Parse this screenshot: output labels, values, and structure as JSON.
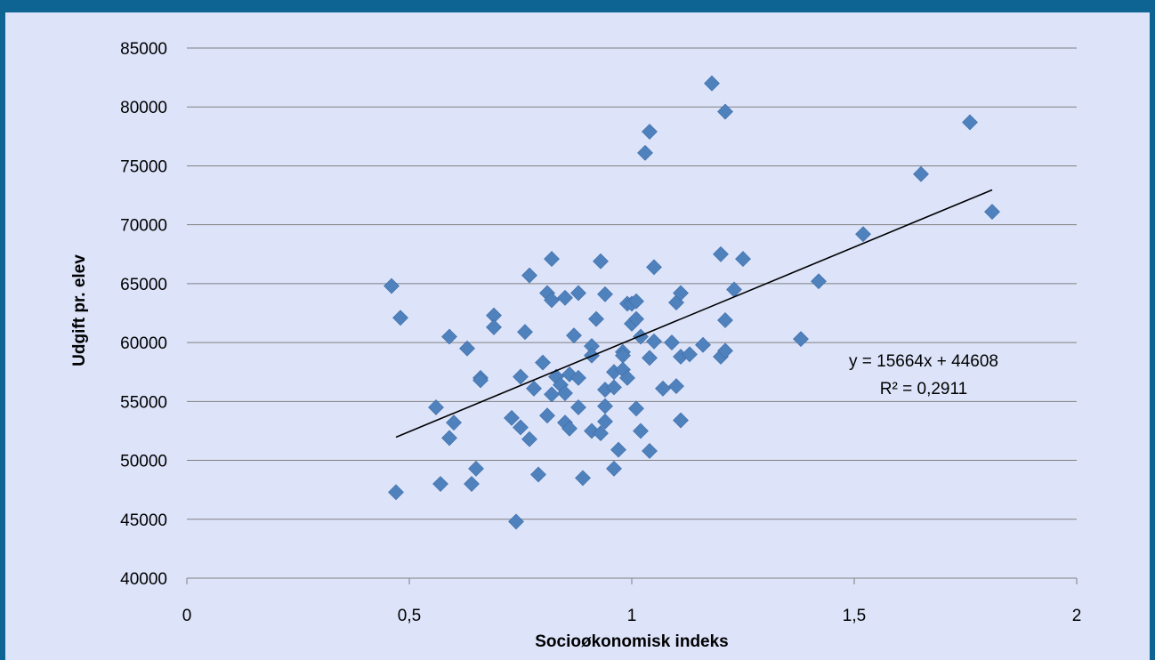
{
  "chart_data": {
    "type": "scatter",
    "title": "",
    "xlabel": "Socioøkonomisk indeks",
    "ylabel": "Udgift pr. elev",
    "xlim": [
      0,
      2
    ],
    "ylim": [
      40000,
      85000
    ],
    "x_ticks": [
      0,
      0.5,
      1,
      1.5,
      2
    ],
    "x_tick_labels": [
      "0",
      "0,5",
      "1",
      "1,5",
      "2"
    ],
    "y_ticks": [
      40000,
      45000,
      50000,
      55000,
      60000,
      65000,
      70000,
      75000,
      80000,
      85000
    ],
    "y_tick_labels": [
      "40000",
      "45000",
      "50000",
      "55000",
      "60000",
      "65000",
      "70000",
      "75000",
      "80000",
      "85000"
    ],
    "grid": "horizontal",
    "marker_color": "#4f81bd",
    "points": [
      [
        0.46,
        64800
      ],
      [
        0.47,
        47300
      ],
      [
        0.48,
        62100
      ],
      [
        0.56,
        54500
      ],
      [
        0.57,
        48000
      ],
      [
        0.59,
        60500
      ],
      [
        0.59,
        51900
      ],
      [
        0.6,
        53200
      ],
      [
        0.63,
        59500
      ],
      [
        0.64,
        48000
      ],
      [
        0.65,
        49300
      ],
      [
        0.66,
        57000
      ],
      [
        0.66,
        56800
      ],
      [
        0.69,
        62300
      ],
      [
        0.69,
        61300
      ],
      [
        0.73,
        53600
      ],
      [
        0.74,
        44800
      ],
      [
        0.75,
        57100
      ],
      [
        0.75,
        52800
      ],
      [
        0.76,
        60900
      ],
      [
        0.77,
        65700
      ],
      [
        0.77,
        51800
      ],
      [
        0.78,
        56100
      ],
      [
        0.79,
        48800
      ],
      [
        0.8,
        58300
      ],
      [
        0.81,
        64200
      ],
      [
        0.81,
        53800
      ],
      [
        0.82,
        67100
      ],
      [
        0.82,
        63600
      ],
      [
        0.82,
        55600
      ],
      [
        0.83,
        57100
      ],
      [
        0.84,
        56400
      ],
      [
        0.85,
        63800
      ],
      [
        0.85,
        55700
      ],
      [
        0.85,
        53200
      ],
      [
        0.86,
        52700
      ],
      [
        0.86,
        57300
      ],
      [
        0.87,
        60600
      ],
      [
        0.88,
        64200
      ],
      [
        0.88,
        57000
      ],
      [
        0.88,
        54500
      ],
      [
        0.89,
        48500
      ],
      [
        0.91,
        59700
      ],
      [
        0.91,
        58900
      ],
      [
        0.91,
        52500
      ],
      [
        0.92,
        62000
      ],
      [
        0.93,
        66900
      ],
      [
        0.93,
        52300
      ],
      [
        0.94,
        64100
      ],
      [
        0.94,
        56000
      ],
      [
        0.94,
        54600
      ],
      [
        0.94,
        53300
      ],
      [
        0.96,
        57500
      ],
      [
        0.96,
        56200
      ],
      [
        0.96,
        49300
      ],
      [
        0.97,
        50900
      ],
      [
        0.98,
        59200
      ],
      [
        0.98,
        58900
      ],
      [
        0.98,
        57700
      ],
      [
        0.99,
        63300
      ],
      [
        0.99,
        57000
      ],
      [
        1.0,
        63300
      ],
      [
        1.0,
        61600
      ],
      [
        1.01,
        63500
      ],
      [
        1.01,
        62000
      ],
      [
        1.01,
        54400
      ],
      [
        1.02,
        60500
      ],
      [
        1.02,
        52500
      ],
      [
        1.03,
        76100
      ],
      [
        1.04,
        77900
      ],
      [
        1.04,
        58700
      ],
      [
        1.04,
        50800
      ],
      [
        1.05,
        66400
      ],
      [
        1.05,
        60100
      ],
      [
        1.07,
        56100
      ],
      [
        1.09,
        60000
      ],
      [
        1.1,
        63400
      ],
      [
        1.1,
        56300
      ],
      [
        1.11,
        64200
      ],
      [
        1.11,
        58800
      ],
      [
        1.11,
        53400
      ],
      [
        1.13,
        59000
      ],
      [
        1.16,
        59800
      ],
      [
        1.18,
        82000
      ],
      [
        1.2,
        67500
      ],
      [
        1.2,
        58800
      ],
      [
        1.21,
        79600
      ],
      [
        1.21,
        61900
      ],
      [
        1.21,
        59300
      ],
      [
        1.23,
        64500
      ],
      [
        1.25,
        67100
      ],
      [
        1.38,
        60300
      ],
      [
        1.42,
        65200
      ],
      [
        1.52,
        69200
      ],
      [
        1.65,
        74300
      ],
      [
        1.76,
        78700
      ],
      [
        1.81,
        71100
      ]
    ],
    "trendline": {
      "slope": 15664,
      "intercept": 44608,
      "x_range": [
        0.47,
        1.81
      ],
      "equation": "y = 15664x + 44608",
      "r_squared": "R² = 0,2911",
      "color": "#000000"
    }
  }
}
